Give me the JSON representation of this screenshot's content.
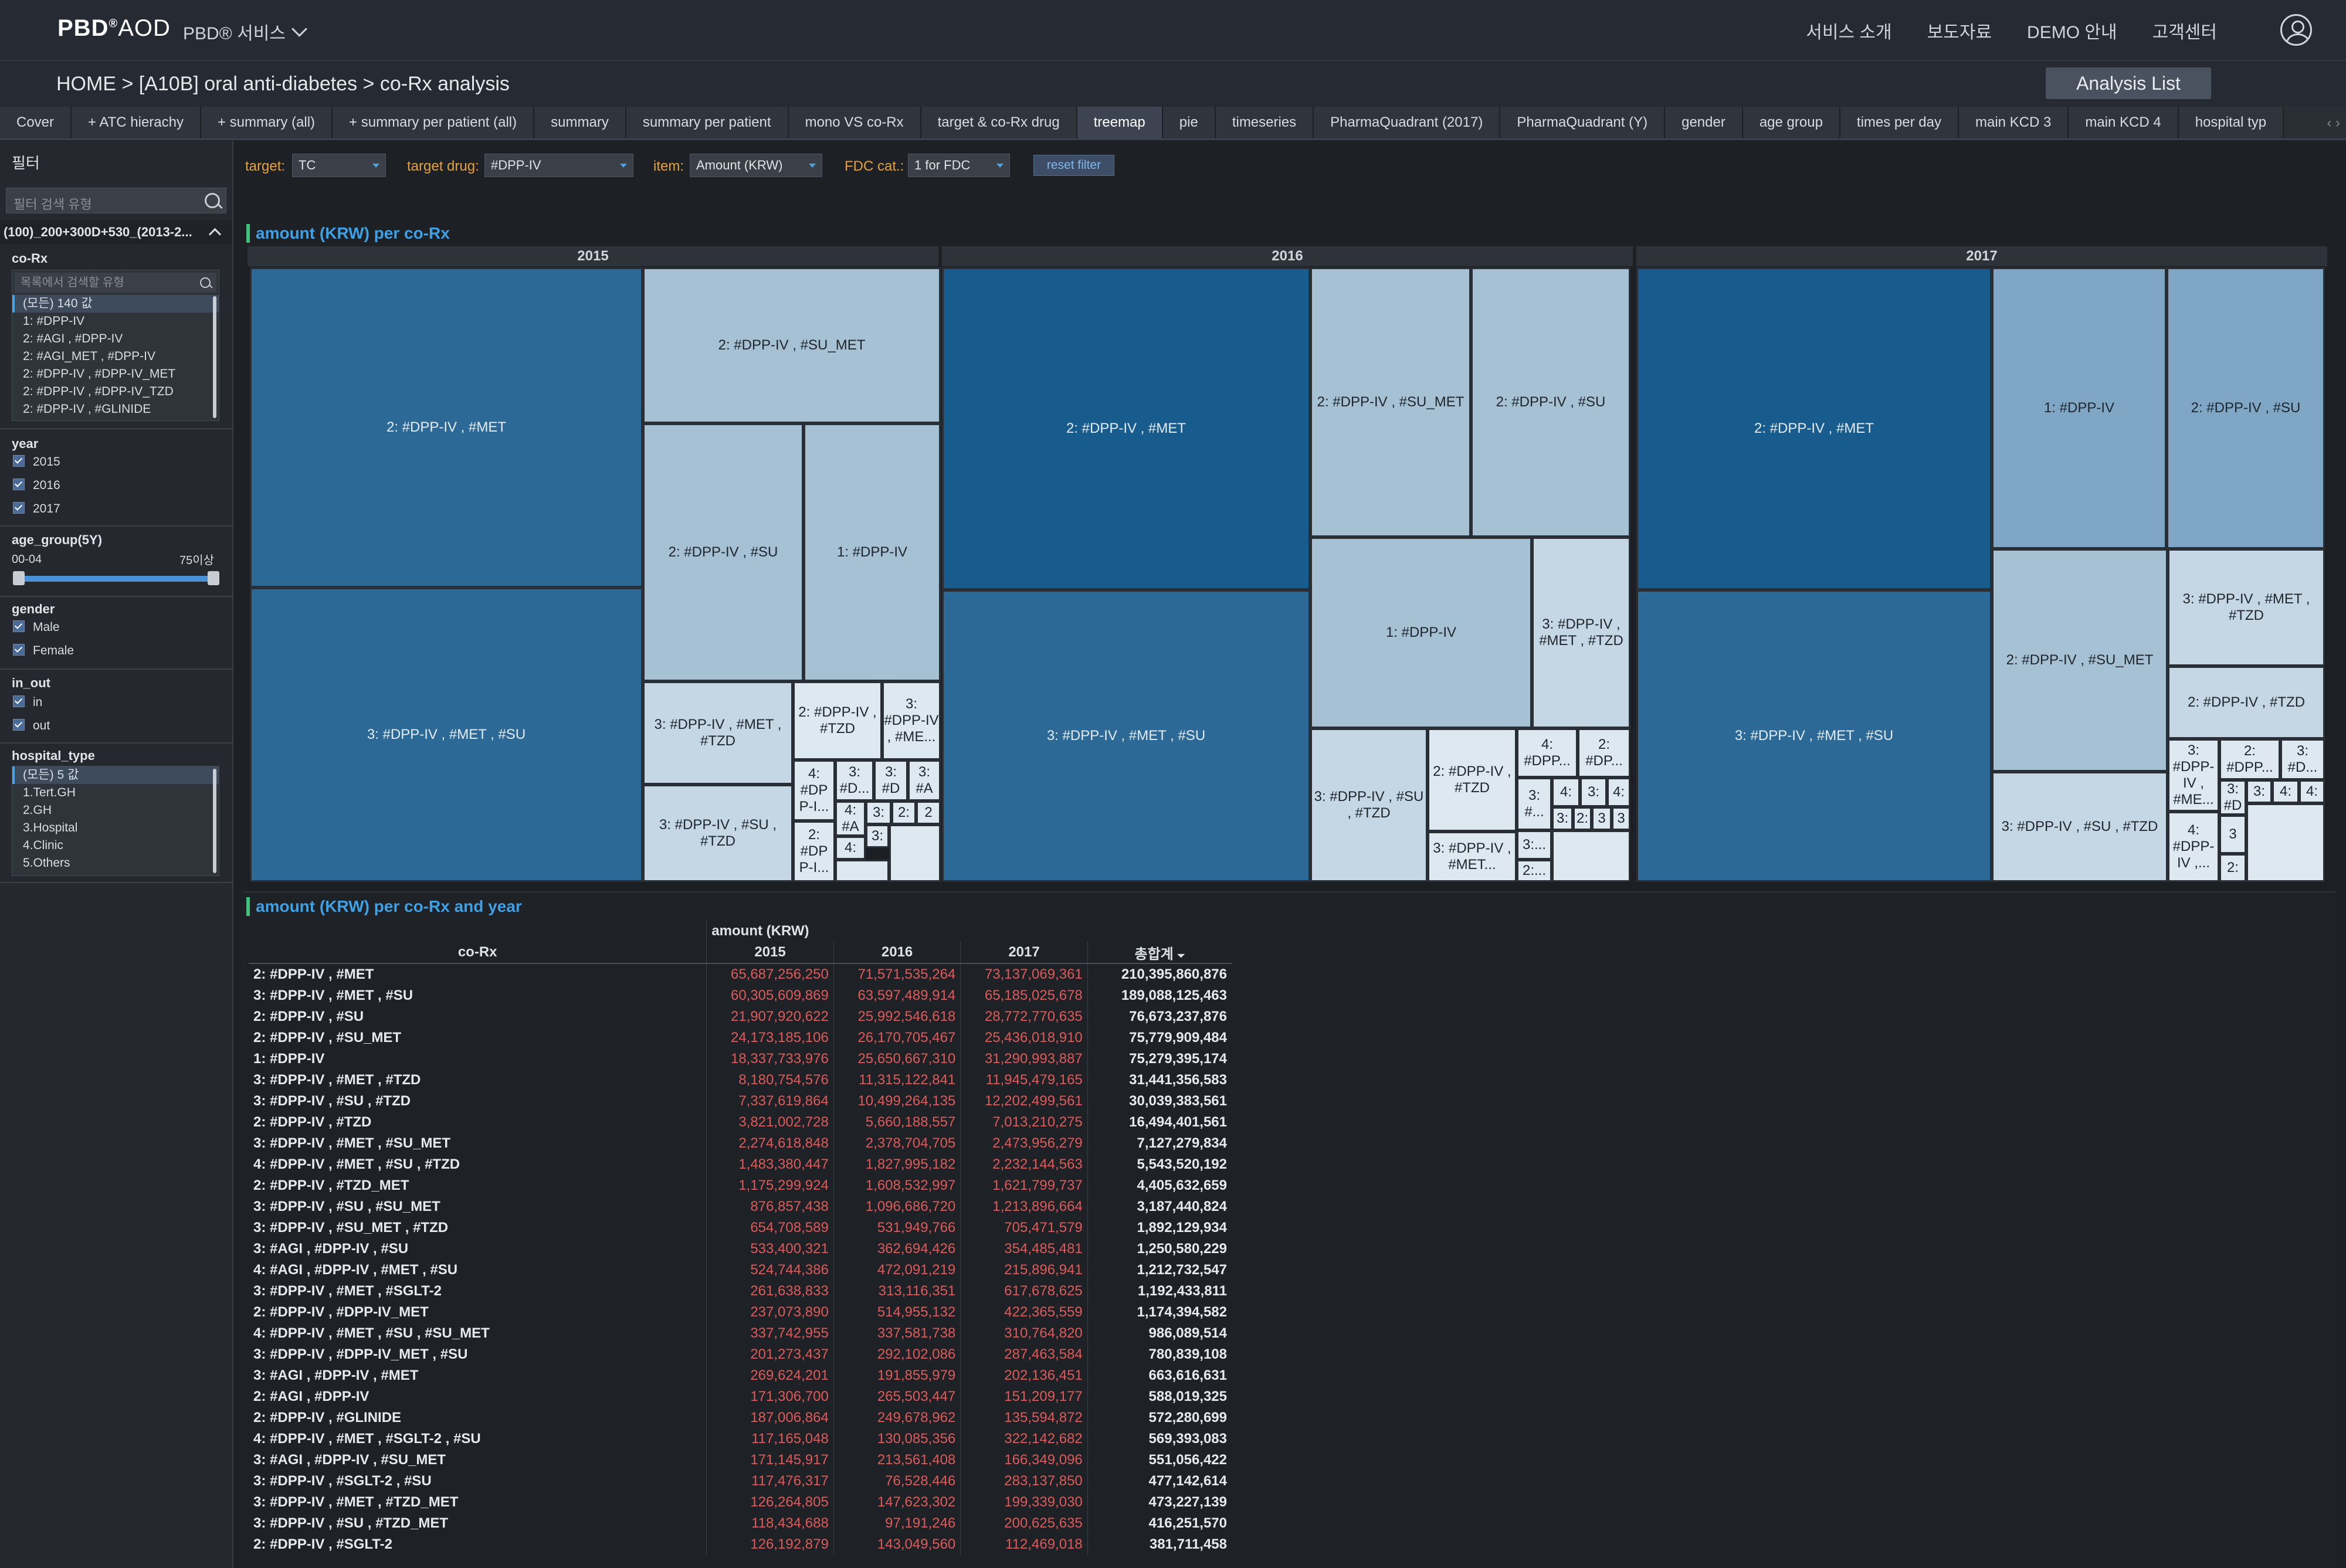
{
  "header": {
    "logo": "PBD",
    "logo_suffix": "AOD",
    "service_menu": "PBD® 서비스",
    "nav": [
      "서비스 소개",
      "보도자료",
      "DEMO 안내",
      "고객센터"
    ]
  },
  "breadcrumb": "HOME >  [A10B] oral anti-diabetes > co-Rx analysis",
  "analysis_list_button": "Analysis List",
  "tabs": [
    "Cover",
    "+ ATC hierachy",
    "+ summary (all)",
    "+ summary per patient (all)",
    "summary",
    "summary per patient",
    "mono VS co-Rx",
    "target & co-Rx drug",
    "treemap",
    "pie",
    "timeseries",
    "PharmaQuadrant (2017)",
    "PharmaQuadrant (Y)",
    "gender",
    "age group",
    "times per day",
    "main KCD 3",
    "main KCD 4",
    "hospital typ"
  ],
  "active_tab": "treemap",
  "sidebar": {
    "title": "필터",
    "search_placeholder": "필터 검색 유형",
    "selection_label": "(100)_200+300D+530_(2013-2...",
    "corx": {
      "label": "co-Rx",
      "search_placeholder": "목록에서 검색할 유형",
      "items": [
        "(모든) 140 값",
        "1: #DPP-IV",
        "2: #AGI , #DPP-IV",
        "2: #AGI_MET , #DPP-IV",
        "2: #DPP-IV , #DPP-IV_MET",
        "2: #DPP-IV , #DPP-IV_TZD",
        "2: #DPP-IV , #GLINIDE"
      ]
    },
    "year": {
      "label": "year",
      "options": [
        "2015",
        "2016",
        "2017"
      ]
    },
    "age": {
      "label": "age_group(5Y)",
      "min_label": "00-04",
      "max_label": "75이상"
    },
    "gender": {
      "label": "gender",
      "options": [
        "Male",
        "Female"
      ]
    },
    "inout": {
      "label": "in_out",
      "options": [
        "in",
        "out"
      ]
    },
    "hospital": {
      "label": "hospital_type",
      "items": [
        "(모든) 5 값",
        "1.Tert.GH",
        "2.GH",
        "3.Hospital",
        "4.Clinic",
        "5.Others"
      ]
    }
  },
  "filters": {
    "target_label": "target:",
    "target_value": "TC",
    "drug_label": "target drug:",
    "drug_value": "#DPP-IV",
    "item_label": "item:",
    "item_value": "Amount (KRW)",
    "fdc_label": "FDC cat.:",
    "fdc_value": "1 for FDC",
    "reset": "reset filter"
  },
  "treemap": {
    "title": "amount (KRW) per co-Rx",
    "years": [
      "2015",
      "2016",
      "2017"
    ],
    "y2015": {
      "a": "2: #DPP-IV , #MET",
      "b": "3: #DPP-IV , #MET , #SU",
      "c": "2: #DPP-IV , #SU_MET",
      "d": "2: #DPP-IV , #SU",
      "e": "1: #DPP-IV",
      "f": "3: #DPP-IV , #MET , #TZD",
      "g": "2: #DPP-IV , #TZD",
      "h": "3: #DPP-IV , #ME...",
      "i": "3: #DPP-IV , #SU , #TZD",
      "j": "4: #DP P-I...",
      "k": "3: #D...",
      "l": "3: #D",
      "m": "3: #A",
      "n": "4: #A",
      "o": "3:",
      "p": "2:",
      "q": "3:",
      "r": "2",
      "s": "2: #DP P-I...",
      "t": "4:",
      "u": "3:"
    },
    "y2016": {
      "a": "2: #DPP-IV , #MET",
      "b": "3: #DPP-IV , #MET , #SU",
      "c": "2: #DPP-IV , #SU_MET",
      "d": "2: #DPP-IV , #SU",
      "e": "1: #DPP-IV",
      "f": "3: #DPP-IV , #MET , #TZD",
      "g": "3: #DPP-IV , #SU , #TZD",
      "h": "2: #DPP-IV , #TZD",
      "i": "3: #DPP-IV , #MET...",
      "j": "4: #DPP...",
      "k": "2: #DP...",
      "l": "3: #...",
      "m": "4:",
      "n": "3:",
      "o": "4:",
      "p": "3:",
      "q": "2:",
      "r": "3",
      "s": "3",
      "t": "3:...",
      "u": "2:..."
    },
    "y2017": {
      "a": "2: #DPP-IV , #MET",
      "b": "3: #DPP-IV , #MET , #SU",
      "c": "1: #DPP-IV",
      "d": "2: #DPP-IV , #SU",
      "e": "2: #DPP-IV , #SU_MET",
      "f": "3: #DPP-IV , #MET , #TZD",
      "g": "2: #DPP-IV , #TZD",
      "h": "3: #DPP-IV , #SU , #TZD",
      "i": "3: #DPP-IV , #ME...",
      "j": "2: #DPP...",
      "k": "3: #D...",
      "l": "4: #DPP-IV ,...",
      "m": "3: #D",
      "n": "3:",
      "o": "4:",
      "p": "3:",
      "q": "4:",
      "r": "3",
      "s": "3",
      "t": "2:",
      "u": "3"
    }
  },
  "table": {
    "title": "amount (KRW) per co-Rx and year",
    "group_header": "amount (KRW)",
    "row_header": "co-Rx",
    "columns": [
      "2015",
      "2016",
      "2017",
      "총합계"
    ],
    "rows": [
      [
        "2: #DPP-IV , #MET",
        "65,687,256,250",
        "71,571,535,264",
        "73,137,069,361",
        "210,395,860,876"
      ],
      [
        "3: #DPP-IV , #MET , #SU",
        "60,305,609,869",
        "63,597,489,914",
        "65,185,025,678",
        "189,088,125,463"
      ],
      [
        "2: #DPP-IV , #SU",
        "21,907,920,622",
        "25,992,546,618",
        "28,772,770,635",
        "76,673,237,876"
      ],
      [
        "2: #DPP-IV , #SU_MET",
        "24,173,185,106",
        "26,170,705,467",
        "25,436,018,910",
        "75,779,909,484"
      ],
      [
        "1: #DPP-IV",
        "18,337,733,976",
        "25,650,667,310",
        "31,290,993,887",
        "75,279,395,174"
      ],
      [
        "3: #DPP-IV , #MET , #TZD",
        "8,180,754,576",
        "11,315,122,841",
        "11,945,479,165",
        "31,441,356,583"
      ],
      [
        "3: #DPP-IV , #SU , #TZD",
        "7,337,619,864",
        "10,499,264,135",
        "12,202,499,561",
        "30,039,383,561"
      ],
      [
        "2: #DPP-IV , #TZD",
        "3,821,002,728",
        "5,660,188,557",
        "7,013,210,275",
        "16,494,401,561"
      ],
      [
        "3: #DPP-IV , #MET , #SU_MET",
        "2,274,618,848",
        "2,378,704,705",
        "2,473,956,279",
        "7,127,279,834"
      ],
      [
        "4: #DPP-IV , #MET , #SU , #TZD",
        "1,483,380,447",
        "1,827,995,182",
        "2,232,144,563",
        "5,543,520,192"
      ],
      [
        "2: #DPP-IV , #TZD_MET",
        "1,175,299,924",
        "1,608,532,997",
        "1,621,799,737",
        "4,405,632,659"
      ],
      [
        "3: #DPP-IV , #SU , #SU_MET",
        "876,857,438",
        "1,096,686,720",
        "1,213,896,664",
        "3,187,440,824"
      ],
      [
        "3: #DPP-IV , #SU_MET , #TZD",
        "654,708,589",
        "531,949,766",
        "705,471,579",
        "1,892,129,934"
      ],
      [
        "3: #AGI , #DPP-IV , #SU",
        "533,400,321",
        "362,694,426",
        "354,485,481",
        "1,250,580,229"
      ],
      [
        "4: #AGI , #DPP-IV , #MET , #SU",
        "524,744,386",
        "472,091,219",
        "215,896,941",
        "1,212,732,547"
      ],
      [
        "3: #DPP-IV , #MET , #SGLT-2",
        "261,638,833",
        "313,116,351",
        "617,678,625",
        "1,192,433,811"
      ],
      [
        "2: #DPP-IV , #DPP-IV_MET",
        "237,073,890",
        "514,955,132",
        "422,365,559",
        "1,174,394,582"
      ],
      [
        "4: #DPP-IV , #MET , #SU , #SU_MET",
        "337,742,955",
        "337,581,738",
        "310,764,820",
        "986,089,514"
      ],
      [
        "3: #DPP-IV , #DPP-IV_MET , #SU",
        "201,273,437",
        "292,102,086",
        "287,463,584",
        "780,839,108"
      ],
      [
        "3: #AGI , #DPP-IV , #MET",
        "269,624,201",
        "191,855,979",
        "202,136,451",
        "663,616,631"
      ],
      [
        "2: #AGI , #DPP-IV",
        "171,306,700",
        "265,503,447",
        "151,209,177",
        "588,019,325"
      ],
      [
        "2: #DPP-IV , #GLINIDE",
        "187,006,864",
        "249,678,962",
        "135,594,872",
        "572,280,699"
      ],
      [
        "4: #DPP-IV , #MET , #SGLT-2 , #SU",
        "117,165,048",
        "130,085,356",
        "322,142,682",
        "569,393,083"
      ],
      [
        "3: #AGI , #DPP-IV , #SU_MET",
        "171,145,917",
        "213,561,408",
        "166,349,096",
        "551,056,422"
      ],
      [
        "3: #DPP-IV , #SGLT-2 , #SU",
        "117,476,317",
        "76,528,446",
        "283,137,850",
        "477,142,614"
      ],
      [
        "3: #DPP-IV , #MET , #TZD_MET",
        "126,264,805",
        "147,623,302",
        "199,339,030",
        "473,227,139"
      ],
      [
        "3: #DPP-IV , #SU , #TZD_MET",
        "118,434,688",
        "97,191,246",
        "200,625,635",
        "416,251,570"
      ],
      [
        "2: #DPP-IV , #SGLT-2",
        "126,192,879",
        "143,049,560",
        "112,469,018",
        "381,711,458"
      ]
    ]
  }
}
